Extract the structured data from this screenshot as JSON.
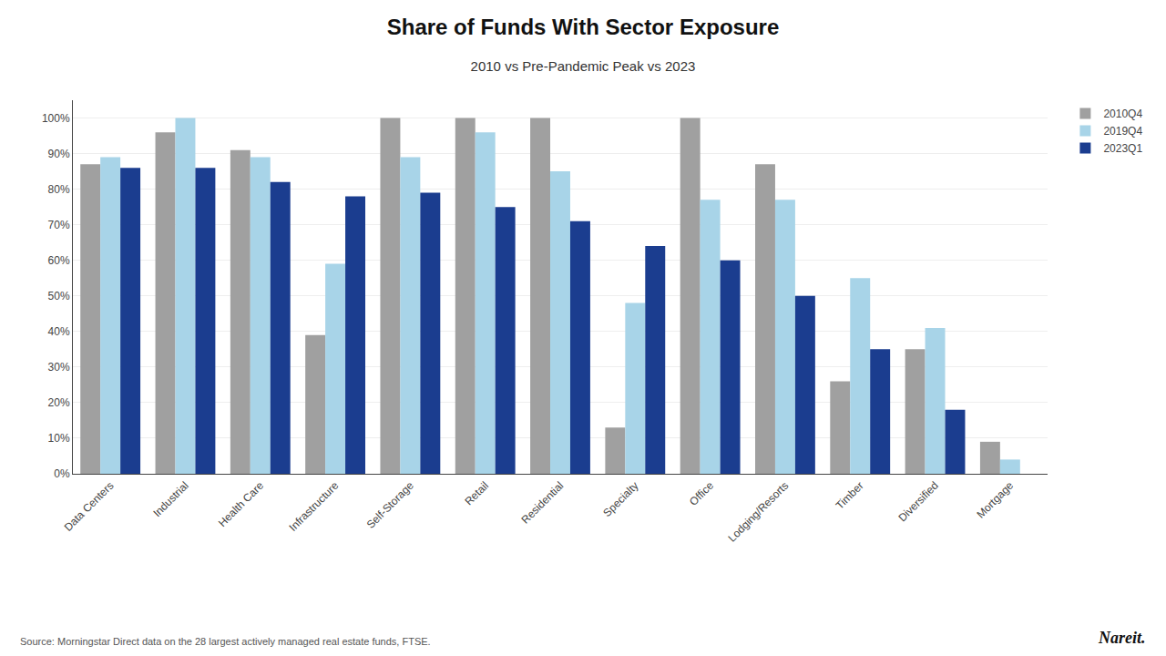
{
  "chart_data": {
    "type": "bar",
    "title": "Share of Funds With Sector Exposure",
    "subtitle": "2010 vs Pre-Pandemic Peak vs 2023",
    "categories": [
      "Data Centers",
      "Industrial",
      "Health Care",
      "Infrastructure",
      "Self-Storage",
      "Retail",
      "Residential",
      "Specialty",
      "Office",
      "Lodging/Resorts",
      "Timber",
      "Diversified",
      "Mortgage"
    ],
    "series": [
      {
        "name": "2010Q4",
        "color": "#a0a0a0",
        "values": [
          87,
          96,
          91,
          39,
          100,
          100,
          100,
          13,
          100,
          87,
          26,
          35,
          9
        ]
      },
      {
        "name": "2019Q4",
        "color": "#a8d4e8",
        "values": [
          89,
          100,
          89,
          59,
          89,
          96,
          85,
          48,
          77,
          77,
          55,
          41,
          4
        ]
      },
      {
        "name": "2023Q1",
        "color": "#1b3d8f",
        "values": [
          86,
          86,
          82,
          78,
          79,
          75,
          71,
          64,
          60,
          50,
          35,
          18,
          0
        ]
      }
    ],
    "ylim": [
      0,
      105
    ],
    "yticks": [
      {
        "value": 0,
        "label": "0%"
      },
      {
        "value": 10,
        "label": "10%"
      },
      {
        "value": 20,
        "label": "20%"
      },
      {
        "value": 30,
        "label": "30%"
      },
      {
        "value": 40,
        "label": "40%"
      },
      {
        "value": 50,
        "label": "50%"
      },
      {
        "value": 60,
        "label": "60%"
      },
      {
        "value": 70,
        "label": "70%"
      },
      {
        "value": 80,
        "label": "80%"
      },
      {
        "value": 90,
        "label": "90%"
      },
      {
        "value": 100,
        "label": "100%"
      }
    ],
    "grid": true,
    "legend": "upper right",
    "annotations": [
      "Source: Morningstar Direct data on the 28 largest actively managed real estate funds, FTSE.",
      "Nareit."
    ]
  }
}
